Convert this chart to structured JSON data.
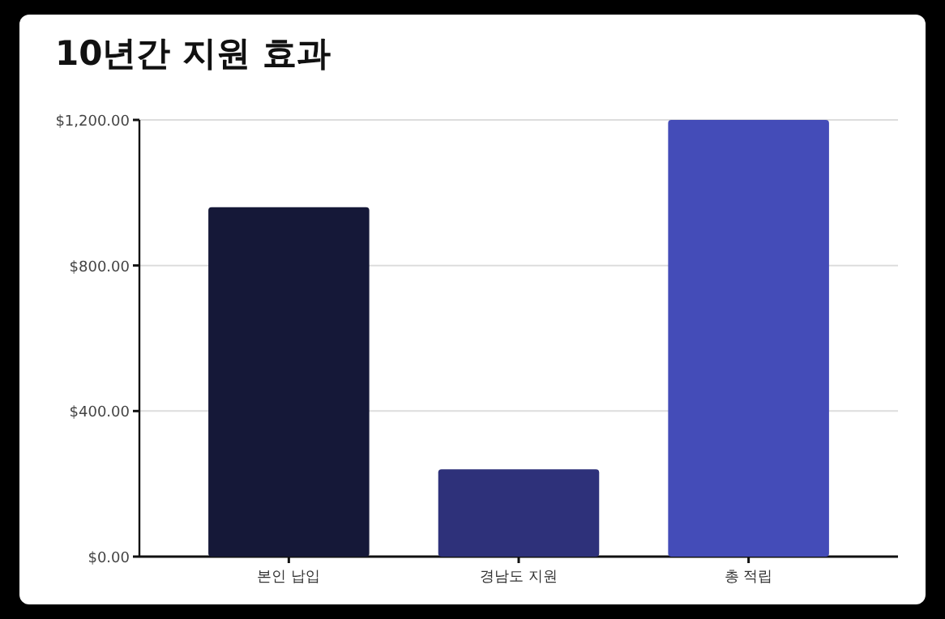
{
  "chart_data": {
    "type": "bar",
    "title": "10년간 지원 효과",
    "categories": [
      "본인 납입",
      "경남도 지원",
      "총 적립"
    ],
    "values": [
      960,
      240,
      1200
    ],
    "colors": [
      "#151838",
      "#2e317a",
      "#444cb8"
    ],
    "ylim": [
      0,
      1200
    ],
    "yticks": [
      {
        "value": 0,
        "label": "$0.00"
      },
      {
        "value": 400,
        "label": "$400.00"
      },
      {
        "value": 800,
        "label": "$800.00"
      },
      {
        "value": 1200,
        "label": "$1,200.00"
      }
    ],
    "grid": "y"
  }
}
